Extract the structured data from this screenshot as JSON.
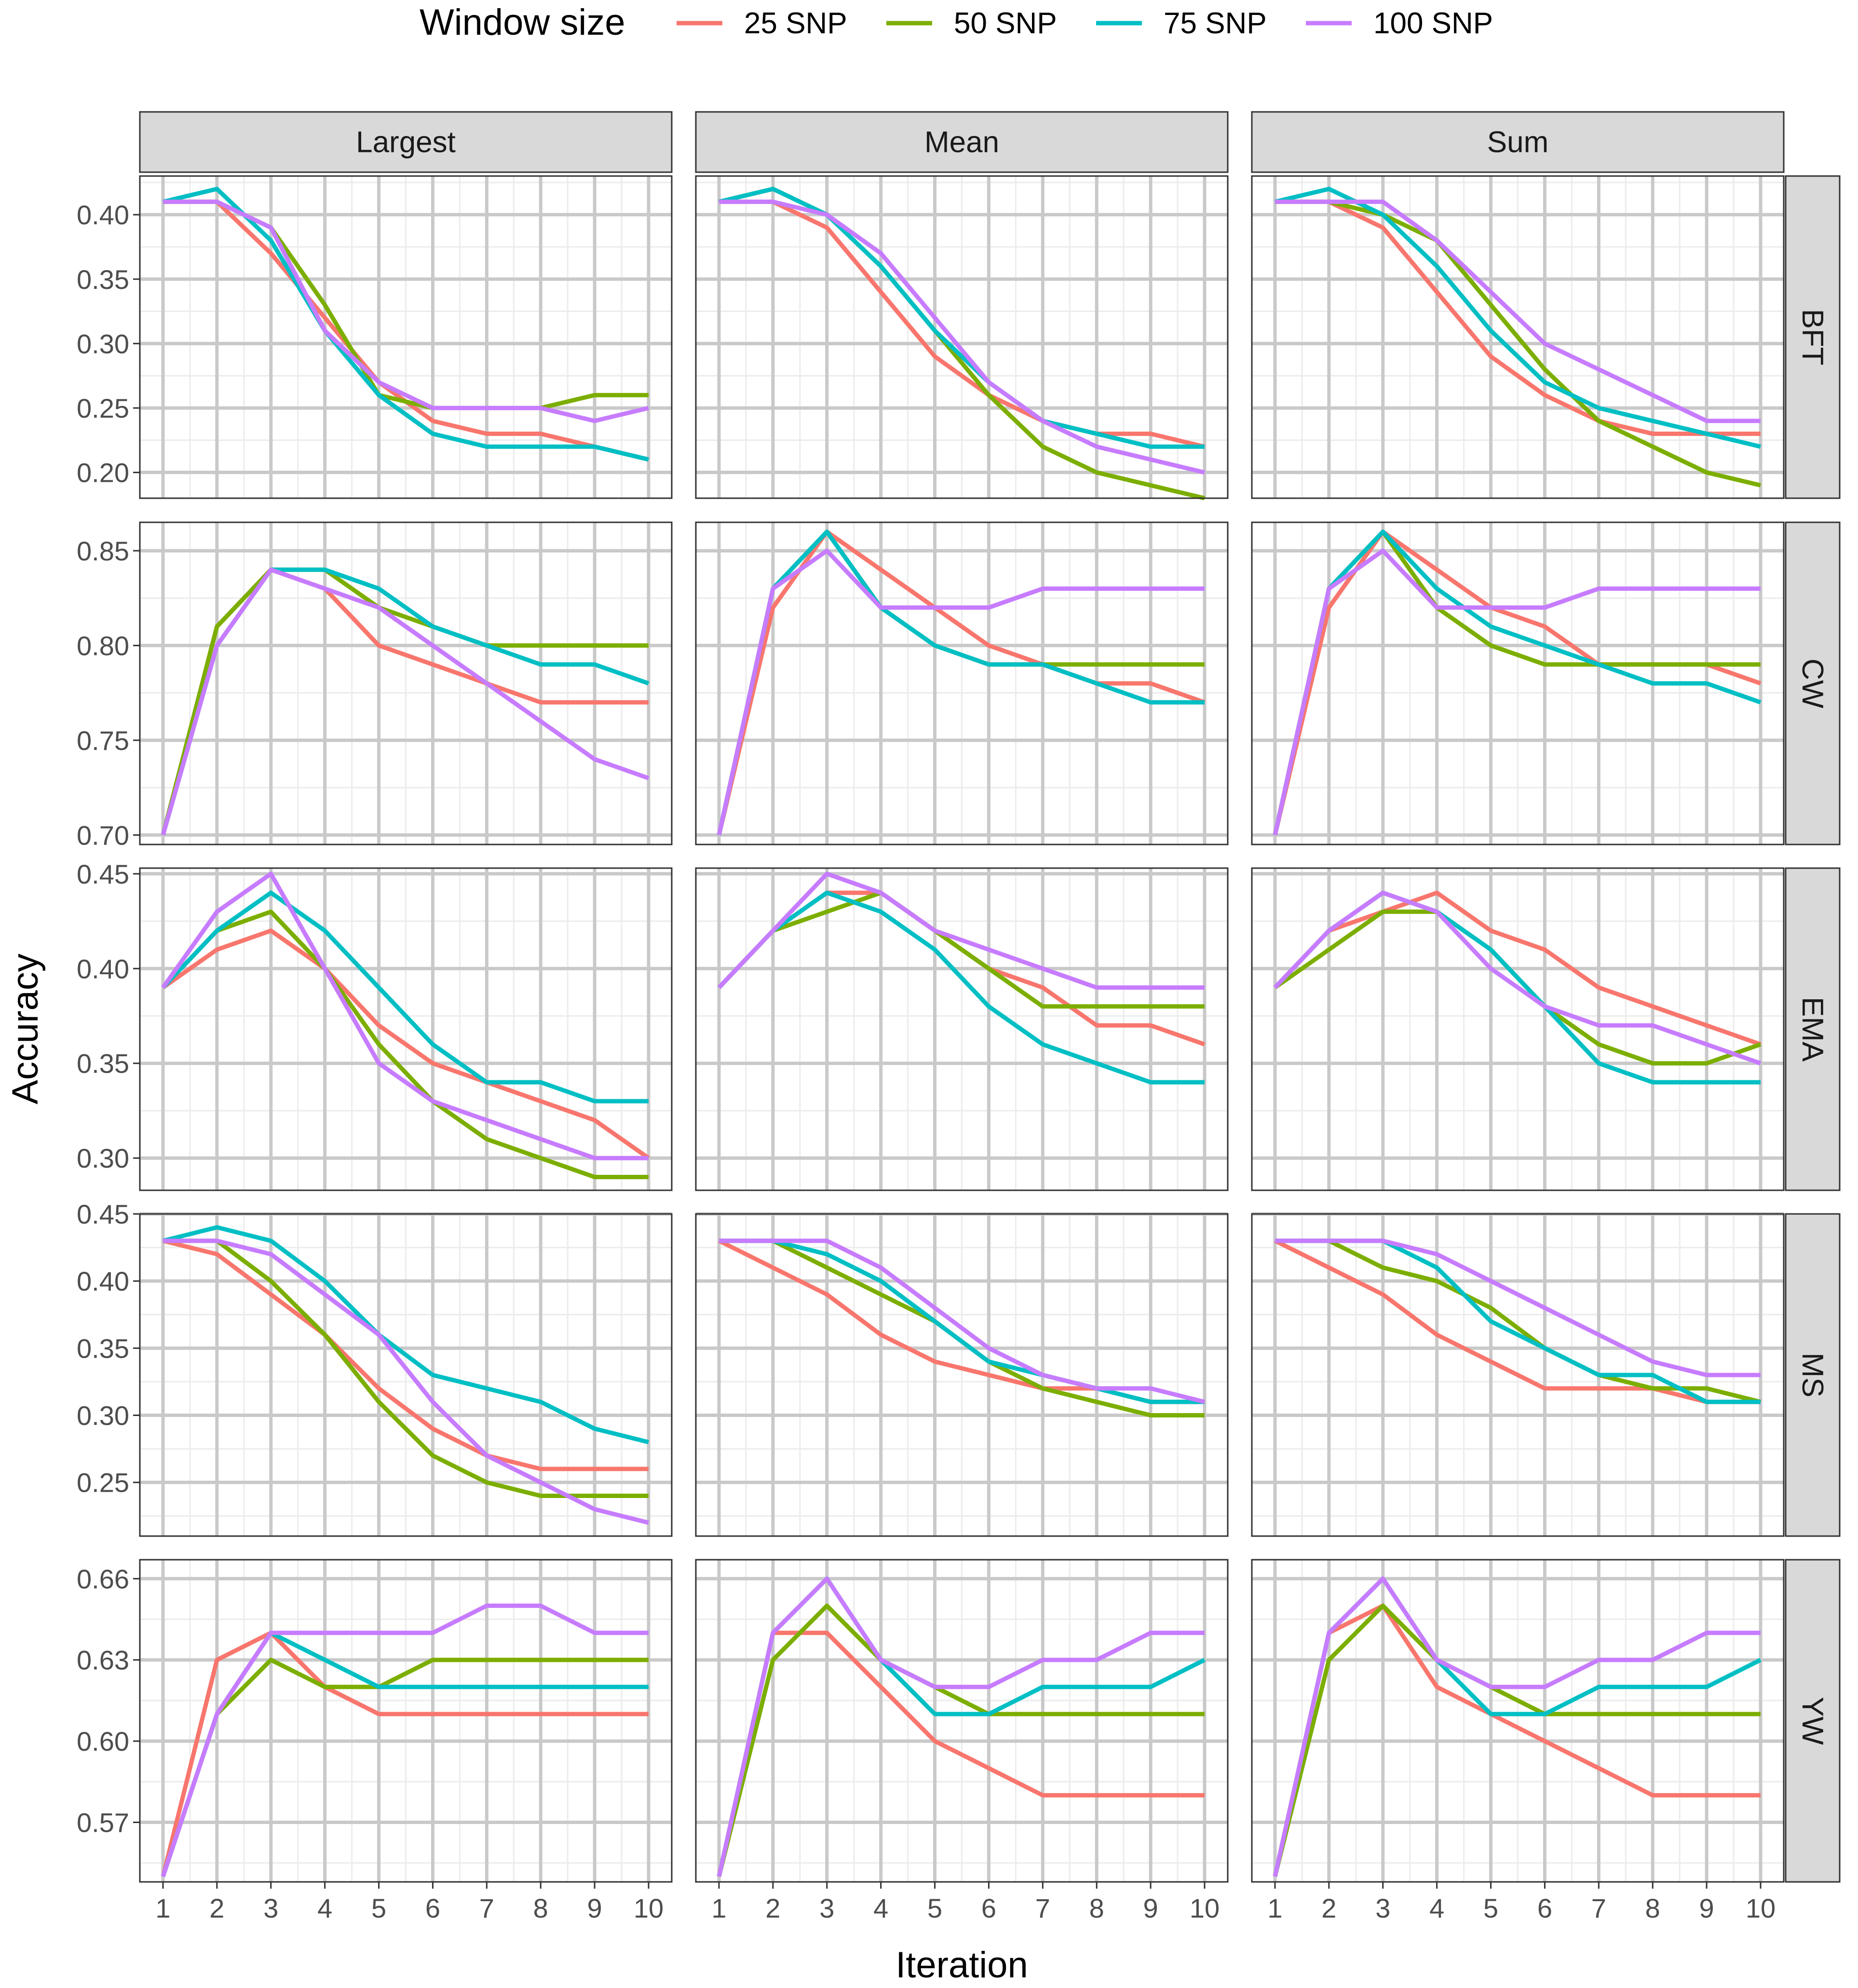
{
  "chart_data": {
    "type": "line",
    "facet_layout": "grid",
    "xlabel": "Iteration",
    "ylabel": "Accuracy",
    "x": [
      1,
      2,
      3,
      4,
      5,
      6,
      7,
      8,
      9,
      10
    ],
    "x_tick_labels": [
      "1",
      "2",
      "3",
      "4",
      "5",
      "6",
      "7",
      "8",
      "9",
      "10"
    ],
    "legend": {
      "title": "Window size",
      "position": "top",
      "entries": [
        {
          "name": "25 SNP",
          "color": "#f8766d"
        },
        {
          "name": "50 SNP",
          "color": "#7cae00"
        },
        {
          "name": "75 SNP",
          "color": "#00bfc4"
        },
        {
          "name": "100 SNP",
          "color": "#c77cff"
        }
      ]
    },
    "columns": [
      "Largest",
      "Mean",
      "Sum"
    ],
    "rows": [
      {
        "name": "BFT",
        "ylim": [
          0.18,
          0.43
        ],
        "y_ticks": [
          0.2,
          0.25,
          0.3,
          0.35,
          0.4
        ],
        "y_tick_labels": [
          "0.20",
          "0.25",
          "0.30",
          "0.35",
          "0.40"
        ],
        "panels": [
          {
            "series": [
              [
                0.41,
                0.41,
                0.37,
                0.32,
                0.27,
                0.24,
                0.23,
                0.23,
                0.22,
                0.21
              ],
              [
                0.41,
                0.41,
                0.39,
                0.33,
                0.26,
                0.25,
                0.25,
                0.25,
                0.26,
                0.26
              ],
              [
                0.41,
                0.42,
                0.38,
                0.31,
                0.26,
                0.23,
                0.22,
                0.22,
                0.22,
                0.21
              ],
              [
                0.41,
                0.41,
                0.39,
                0.31,
                0.27,
                0.25,
                0.25,
                0.25,
                0.24,
                0.25
              ]
            ]
          },
          {
            "series": [
              [
                0.41,
                0.41,
                0.39,
                0.34,
                0.29,
                0.26,
                0.24,
                0.23,
                0.23,
                0.22
              ],
              [
                0.41,
                0.42,
                0.4,
                0.36,
                0.31,
                0.26,
                0.22,
                0.2,
                0.19,
                0.18
              ],
              [
                0.41,
                0.42,
                0.4,
                0.36,
                0.31,
                0.27,
                0.24,
                0.23,
                0.22,
                0.22
              ],
              [
                0.41,
                0.41,
                0.4,
                0.37,
                0.32,
                0.27,
                0.24,
                0.22,
                0.21,
                0.2
              ]
            ]
          },
          {
            "series": [
              [
                0.41,
                0.41,
                0.39,
                0.34,
                0.29,
                0.26,
                0.24,
                0.23,
                0.23,
                0.23
              ],
              [
                0.41,
                0.41,
                0.4,
                0.38,
                0.33,
                0.28,
                0.24,
                0.22,
                0.2,
                0.19
              ],
              [
                0.41,
                0.42,
                0.4,
                0.36,
                0.31,
                0.27,
                0.25,
                0.24,
                0.23,
                0.22
              ],
              [
                0.41,
                0.41,
                0.41,
                0.38,
                0.34,
                0.3,
                0.28,
                0.26,
                0.24,
                0.24
              ]
            ]
          }
        ]
      },
      {
        "name": "CW",
        "ylim": [
          0.695,
          0.865
        ],
        "y_ticks": [
          0.7,
          0.75,
          0.8,
          0.85
        ],
        "y_tick_labels": [
          "0.70",
          "0.75",
          "0.80",
          "0.85"
        ],
        "panels": [
          {
            "series": [
              [
                0.7,
                0.81,
                0.84,
                0.83,
                0.8,
                0.79,
                0.78,
                0.77,
                0.77,
                0.77
              ],
              [
                0.7,
                0.81,
                0.84,
                0.84,
                0.82,
                0.81,
                0.8,
                0.8,
                0.8,
                0.8
              ],
              [
                0.7,
                0.8,
                0.84,
                0.84,
                0.83,
                0.81,
                0.8,
                0.79,
                0.79,
                0.78
              ],
              [
                0.7,
                0.8,
                0.84,
                0.83,
                0.82,
                0.8,
                0.78,
                0.76,
                0.74,
                0.73
              ]
            ]
          },
          {
            "series": [
              [
                0.7,
                0.82,
                0.86,
                0.84,
                0.82,
                0.8,
                0.79,
                0.78,
                0.78,
                0.77
              ],
              [
                0.7,
                0.83,
                0.86,
                0.82,
                0.8,
                0.79,
                0.79,
                0.79,
                0.79,
                0.79
              ],
              [
                0.7,
                0.83,
                0.86,
                0.82,
                0.8,
                0.79,
                0.79,
                0.78,
                0.77,
                0.77
              ],
              [
                0.7,
                0.83,
                0.85,
                0.82,
                0.82,
                0.82,
                0.83,
                0.83,
                0.83,
                0.83
              ]
            ]
          },
          {
            "series": [
              [
                0.7,
                0.82,
                0.86,
                0.84,
                0.82,
                0.81,
                0.79,
                0.79,
                0.79,
                0.78
              ],
              [
                0.7,
                0.83,
                0.86,
                0.82,
                0.8,
                0.79,
                0.79,
                0.79,
                0.79,
                0.79
              ],
              [
                0.7,
                0.83,
                0.86,
                0.83,
                0.81,
                0.8,
                0.79,
                0.78,
                0.78,
                0.77
              ],
              [
                0.7,
                0.83,
                0.85,
                0.82,
                0.82,
                0.82,
                0.83,
                0.83,
                0.83,
                0.83
              ]
            ]
          }
        ]
      },
      {
        "name": "EMA",
        "ylim": [
          0.283,
          0.453
        ],
        "y_ticks": [
          0.3,
          0.35,
          0.4,
          0.45
        ],
        "y_tick_labels": [
          "0.30",
          "0.35",
          "0.40",
          "0.45"
        ],
        "panels": [
          {
            "series": [
              [
                0.39,
                0.41,
                0.42,
                0.4,
                0.37,
                0.35,
                0.34,
                0.33,
                0.32,
                0.3
              ],
              [
                0.39,
                0.42,
                0.43,
                0.4,
                0.36,
                0.33,
                0.31,
                0.3,
                0.29,
                0.29
              ],
              [
                0.39,
                0.42,
                0.44,
                0.42,
                0.39,
                0.36,
                0.34,
                0.34,
                0.33,
                0.33
              ],
              [
                0.39,
                0.43,
                0.45,
                0.4,
                0.35,
                0.33,
                0.32,
                0.31,
                0.3,
                0.3
              ]
            ]
          },
          {
            "series": [
              [
                0.39,
                0.42,
                0.44,
                0.44,
                0.42,
                0.4,
                0.39,
                0.37,
                0.37,
                0.36
              ],
              [
                0.39,
                0.42,
                0.43,
                0.44,
                0.42,
                0.4,
                0.38,
                0.38,
                0.38,
                0.38
              ],
              [
                0.39,
                0.42,
                0.44,
                0.43,
                0.41,
                0.38,
                0.36,
                0.35,
                0.34,
                0.34
              ],
              [
                0.39,
                0.42,
                0.45,
                0.44,
                0.42,
                0.41,
                0.4,
                0.39,
                0.39,
                0.39
              ]
            ]
          },
          {
            "series": [
              [
                0.39,
                0.42,
                0.43,
                0.44,
                0.42,
                0.41,
                0.39,
                0.38,
                0.37,
                0.36
              ],
              [
                0.39,
                0.41,
                0.43,
                0.43,
                0.41,
                0.38,
                0.36,
                0.35,
                0.35,
                0.36
              ],
              [
                0.39,
                0.42,
                0.44,
                0.43,
                0.41,
                0.38,
                0.35,
                0.34,
                0.34,
                0.34
              ],
              [
                0.39,
                0.42,
                0.44,
                0.43,
                0.4,
                0.38,
                0.37,
                0.37,
                0.36,
                0.35
              ]
            ]
          }
        ]
      },
      {
        "name": "MS",
        "ylim": [
          0.21,
          0.45
        ],
        "y_ticks": [
          0.25,
          0.3,
          0.35,
          0.4,
          0.45
        ],
        "y_tick_labels": [
          "0.25",
          "0.30",
          "0.35",
          "0.40",
          "0.45"
        ],
        "panels": [
          {
            "series": [
              [
                0.43,
                0.42,
                0.39,
                0.36,
                0.32,
                0.29,
                0.27,
                0.26,
                0.26,
                0.26
              ],
              [
                0.43,
                0.43,
                0.4,
                0.36,
                0.31,
                0.27,
                0.25,
                0.24,
                0.24,
                0.24
              ],
              [
                0.43,
                0.44,
                0.43,
                0.4,
                0.36,
                0.33,
                0.32,
                0.31,
                0.29,
                0.28
              ],
              [
                0.43,
                0.43,
                0.42,
                0.39,
                0.36,
                0.31,
                0.27,
                0.25,
                0.23,
                0.22
              ]
            ]
          },
          {
            "series": [
              [
                0.43,
                0.41,
                0.39,
                0.36,
                0.34,
                0.33,
                0.32,
                0.32,
                0.31,
                0.31
              ],
              [
                0.43,
                0.43,
                0.41,
                0.39,
                0.37,
                0.34,
                0.32,
                0.31,
                0.3,
                0.3
              ],
              [
                0.43,
                0.43,
                0.42,
                0.4,
                0.37,
                0.34,
                0.33,
                0.32,
                0.31,
                0.31
              ],
              [
                0.43,
                0.43,
                0.43,
                0.41,
                0.38,
                0.35,
                0.33,
                0.32,
                0.32,
                0.31
              ]
            ]
          },
          {
            "series": [
              [
                0.43,
                0.41,
                0.39,
                0.36,
                0.34,
                0.32,
                0.32,
                0.32,
                0.31,
                0.31
              ],
              [
                0.43,
                0.43,
                0.41,
                0.4,
                0.38,
                0.35,
                0.33,
                0.32,
                0.32,
                0.31
              ],
              [
                0.43,
                0.43,
                0.43,
                0.41,
                0.37,
                0.35,
                0.33,
                0.33,
                0.31,
                0.31
              ],
              [
                0.43,
                0.43,
                0.43,
                0.42,
                0.4,
                0.38,
                0.36,
                0.34,
                0.33,
                0.33
              ]
            ]
          }
        ]
      },
      {
        "name": "YW",
        "ylim": [
          0.548,
          0.667
        ],
        "y_ticks": [
          0.57,
          0.6,
          0.63,
          0.66
        ],
        "y_tick_labels": [
          "0.57",
          "0.60",
          "0.63",
          "0.66"
        ],
        "panels": [
          {
            "series": [
              [
                0.55,
                0.63,
                0.64,
                0.62,
                0.61,
                0.61,
                0.61,
                0.61,
                0.61,
                0.61
              ],
              [
                0.55,
                0.61,
                0.63,
                0.62,
                0.62,
                0.63,
                0.63,
                0.63,
                0.63,
                0.63
              ],
              [
                0.55,
                0.61,
                0.64,
                0.63,
                0.62,
                0.62,
                0.62,
                0.62,
                0.62,
                0.62
              ],
              [
                0.55,
                0.61,
                0.64,
                0.64,
                0.64,
                0.64,
                0.65,
                0.65,
                0.64,
                0.64
              ]
            ]
          },
          {
            "series": [
              [
                0.55,
                0.64,
                0.64,
                0.62,
                0.6,
                0.59,
                0.58,
                0.58,
                0.58,
                0.58
              ],
              [
                0.55,
                0.63,
                0.65,
                0.63,
                0.62,
                0.61,
                0.61,
                0.61,
                0.61,
                0.61
              ],
              [
                0.55,
                0.64,
                0.66,
                0.63,
                0.61,
                0.61,
                0.62,
                0.62,
                0.62,
                0.63
              ],
              [
                0.55,
                0.64,
                0.66,
                0.63,
                0.62,
                0.62,
                0.63,
                0.63,
                0.64,
                0.64
              ]
            ]
          },
          {
            "series": [
              [
                0.55,
                0.64,
                0.65,
                0.62,
                0.61,
                0.6,
                0.59,
                0.58,
                0.58,
                0.58
              ],
              [
                0.55,
                0.63,
                0.65,
                0.63,
                0.62,
                0.61,
                0.61,
                0.61,
                0.61,
                0.61
              ],
              [
                0.55,
                0.64,
                0.66,
                0.63,
                0.61,
                0.61,
                0.62,
                0.62,
                0.62,
                0.63
              ],
              [
                0.55,
                0.64,
                0.66,
                0.63,
                0.62,
                0.62,
                0.63,
                0.63,
                0.64,
                0.64
              ]
            ]
          }
        ]
      }
    ]
  }
}
